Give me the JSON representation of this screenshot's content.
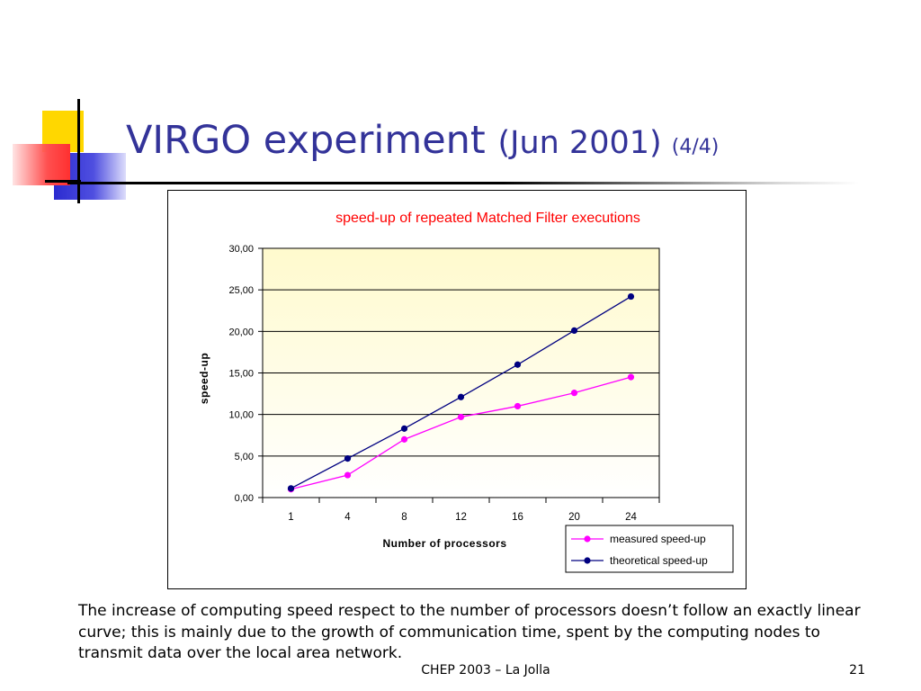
{
  "slide": {
    "title_main": "VIRGO experiment ",
    "title_date": "(Jun 2001) ",
    "title_page": "(4/4)",
    "caption": "The increase of computing speed respect to the number of processors doesn’t follow an exactly linear curve; this is mainly due to the growth of communication time, spent by the computing nodes to transmit data over the local area network.",
    "footer_center": "CHEP 2003 – La Jolla",
    "footer_page": "21"
  },
  "colors": {
    "title": "#333399",
    "chart_title": "#ff0000",
    "measured": "#ff00ff",
    "theoretical": "#000080",
    "plot_bg_top": "#fffacd",
    "plot_bg_bottom": "#ffffff",
    "deco_yellow": "#ffd700",
    "deco_blue": "#3b3bd6",
    "deco_red": "#ff4040"
  },
  "chart_data": {
    "type": "line",
    "title": "speed-up of repeated Matched Filter executions",
    "xlabel": "Number of processors",
    "ylabel": "speed-up",
    "categories": [
      "1",
      "4",
      "8",
      "12",
      "16",
      "20",
      "24"
    ],
    "ylim": [
      0,
      30
    ],
    "yticks": [
      0,
      5,
      10,
      15,
      20,
      25,
      30
    ],
    "ytick_labels": [
      "0,00",
      "5,00",
      "10,00",
      "15,00",
      "20,00",
      "25,00",
      "30,00"
    ],
    "grid": true,
    "legend_position": "bottom-right",
    "series": [
      {
        "name": "measured speed-up",
        "color": "#ff00ff",
        "values": [
          1.0,
          2.7,
          7.0,
          9.7,
          11.0,
          12.6,
          14.5
        ]
      },
      {
        "name": "theoretical speed-up",
        "color": "#000080",
        "values": [
          1.1,
          4.7,
          8.3,
          12.1,
          16.0,
          20.1,
          24.2
        ]
      }
    ]
  }
}
